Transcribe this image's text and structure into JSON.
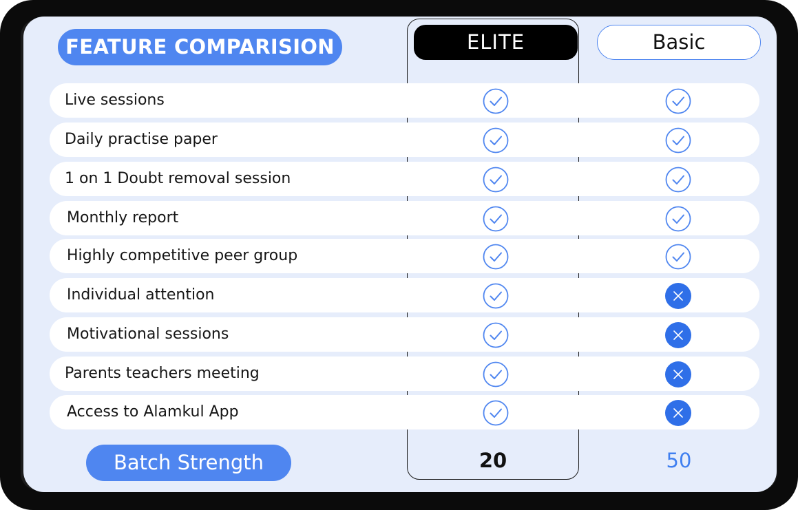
{
  "header": {
    "title": "FEATURE COMPARISION",
    "plans": [
      {
        "label": "ELITE"
      },
      {
        "label": "Basic"
      }
    ]
  },
  "features": [
    {
      "label": "Live sessions",
      "elite": "check-icon",
      "basic": "check-icon"
    },
    {
      "label": "Daily practise paper",
      "elite": "check-icon",
      "basic": "check-icon"
    },
    {
      "label": "1 on 1 Doubt removal session",
      "elite": "check-icon",
      "basic": "check-icon"
    },
    {
      "label": "Monthly report",
      "elite": "check-icon",
      "basic": "check-icon"
    },
    {
      "label": "Highly competitive peer group",
      "elite": "check-icon",
      "basic": "check-icon"
    },
    {
      "label": "Individual attention",
      "elite": "check-icon",
      "basic": "cross-icon"
    },
    {
      "label": "Motivational sessions",
      "elite": "check-icon",
      "basic": "cross-icon"
    },
    {
      "label": "Parents teachers meeting",
      "elite": "check-icon",
      "basic": "cross-icon"
    },
    {
      "label": "Access to Alamkul App",
      "elite": "check-icon",
      "basic": "cross-icon"
    }
  ],
  "footer": {
    "label": "Batch Strength",
    "elite_value": "20",
    "basic_value": "50"
  },
  "colors": {
    "accent": "#4f86f0",
    "background": "#e6edfb",
    "elite_header": "#000000"
  }
}
